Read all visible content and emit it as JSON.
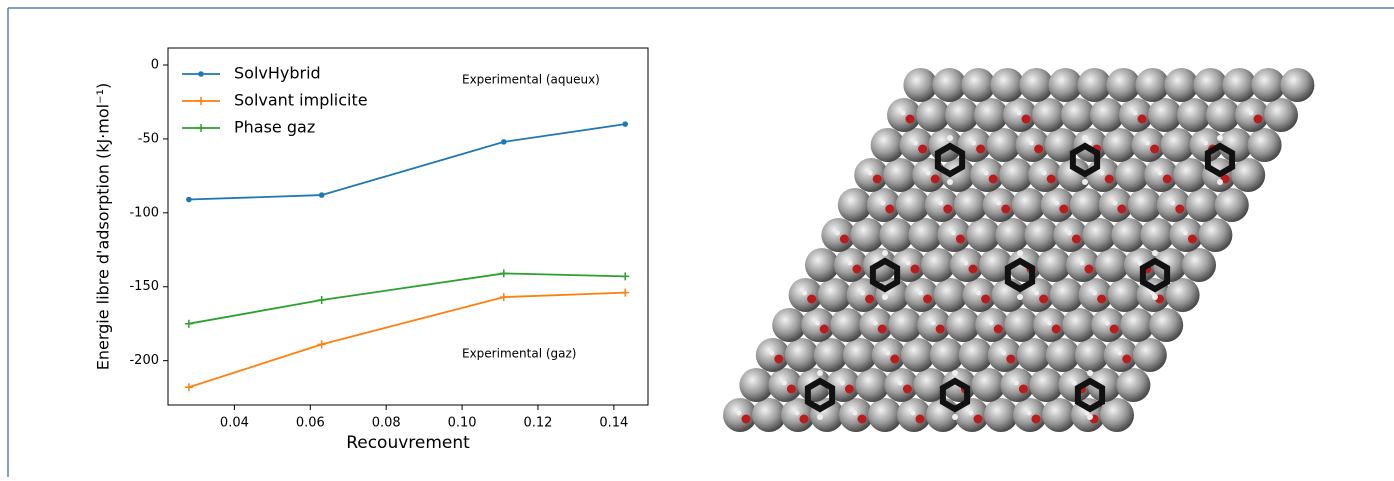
{
  "chart_data": {
    "type": "line",
    "x": [
      0.028,
      0.063,
      0.111,
      0.143
    ],
    "series": [
      {
        "name": "SolvHybrid",
        "color": "#1f77b4",
        "marker": "dot",
        "values": [
          -91,
          -88,
          -52,
          -40
        ]
      },
      {
        "name": "Solvant implicite",
        "color": "#ff7f0e",
        "marker": "plus",
        "values": [
          -218,
          -189,
          -157,
          -154
        ]
      },
      {
        "name": "Phase gaz",
        "color": "#2ca02c",
        "marker": "plus",
        "values": [
          -175,
          -159,
          -141,
          -143
        ]
      }
    ],
    "xlabel": "Recouvrement",
    "ylabel": "Energie libre d'adsorption (kJ·mol⁻¹)",
    "xlim": [
      0.0225,
      0.149
    ],
    "ylim": [
      -230,
      11.5
    ],
    "xticks": [
      0.04,
      0.06,
      0.08,
      {
        "value": 0.1,
        "label": "0.10"
      },
      0.12,
      0.14
    ],
    "yticks": [
      0,
      -50,
      -100,
      -150,
      -200
    ],
    "annotations": [
      "Experimental (aqueux)",
      "Experimental (gaz)"
    ],
    "legend": "upper left",
    "grid": false
  }
}
